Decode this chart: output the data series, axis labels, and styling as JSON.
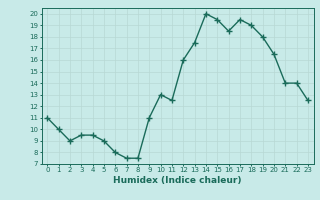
{
  "x": [
    0,
    1,
    2,
    3,
    4,
    5,
    6,
    7,
    8,
    9,
    10,
    11,
    12,
    13,
    14,
    15,
    16,
    17,
    18,
    19,
    20,
    21,
    22,
    23
  ],
  "y": [
    11,
    10,
    9,
    9.5,
    9.5,
    9,
    8,
    7.5,
    7.5,
    11,
    13,
    12.5,
    16,
    17.5,
    20,
    19.5,
    18.5,
    19.5,
    19,
    18,
    16.5,
    14,
    14,
    12.5
  ],
  "xlabel": "Humidex (Indice chaleur)",
  "ylim": [
    7,
    20.5
  ],
  "xlim": [
    -0.5,
    23.5
  ],
  "yticks": [
    7,
    8,
    9,
    10,
    11,
    12,
    13,
    14,
    15,
    16,
    17,
    18,
    19,
    20
  ],
  "xticks": [
    0,
    1,
    2,
    3,
    4,
    5,
    6,
    7,
    8,
    9,
    10,
    11,
    12,
    13,
    14,
    15,
    16,
    17,
    18,
    19,
    20,
    21,
    22,
    23
  ],
  "line_color": "#1a6b5a",
  "bg_color": "#c8eae8",
  "grid_color": "#b8d8d4",
  "tick_color": "#1a6b5a",
  "marker": "+",
  "linewidth": 1.0,
  "markersize": 4,
  "xlabel_fontsize": 6.5,
  "tick_fontsize": 5.0
}
